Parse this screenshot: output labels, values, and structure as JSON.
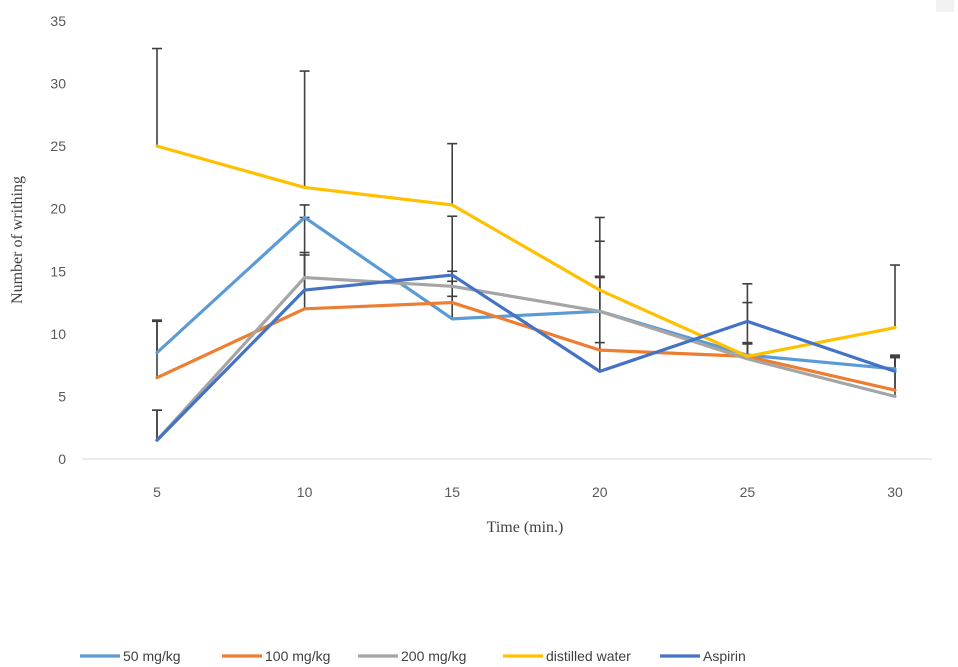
{
  "chart_data": {
    "type": "line",
    "xlabel": "Time (min.)",
    "ylabel": "Number of writhing",
    "categories": [
      "5",
      "10",
      "15",
      "20",
      "25",
      "30"
    ],
    "ylim": [
      0,
      35
    ],
    "yticks": [
      0,
      5,
      10,
      15,
      20,
      25,
      30,
      35
    ],
    "grid": false,
    "legend_position": "bottom",
    "series": [
      {
        "name": "50 mg/kg",
        "color": "#5B9BD5",
        "values": [
          8.5,
          19.3,
          11.2,
          11.8,
          8.3,
          7.2
        ],
        "errors": [
          2.6,
          1.0,
          3.0,
          2.8,
          0.9,
          1.0
        ]
      },
      {
        "name": "100 mg/kg",
        "color": "#ED7D31",
        "values": [
          6.5,
          12.0,
          12.5,
          8.7,
          8.2,
          5.5
        ],
        "errors": [
          4.5,
          4.3,
          0.5,
          0.6,
          1.1,
          2.6
        ]
      },
      {
        "name": "200 mg/kg",
        "color": "#A5A5A5",
        "values": [
          1.5,
          14.5,
          13.8,
          11.8,
          8.0,
          5.0
        ],
        "errors": [
          2.4,
          4.8,
          1.2,
          2.7,
          1.2,
          3.2
        ]
      },
      {
        "name": "distilled water",
        "color": "#FFC000",
        "values": [
          25.0,
          21.7,
          20.3,
          13.5,
          8.2,
          10.5
        ],
        "errors": [
          7.8,
          9.3,
          4.9,
          5.8,
          5.8,
          5.0
        ]
      },
      {
        "name": "Aspirin",
        "color": "#4472C4",
        "values": [
          1.5,
          13.5,
          14.7,
          7.0,
          11.0,
          7.0
        ],
        "errors": [
          2.4,
          3.0,
          4.7,
          10.4,
          1.5,
          1.3
        ]
      }
    ]
  }
}
